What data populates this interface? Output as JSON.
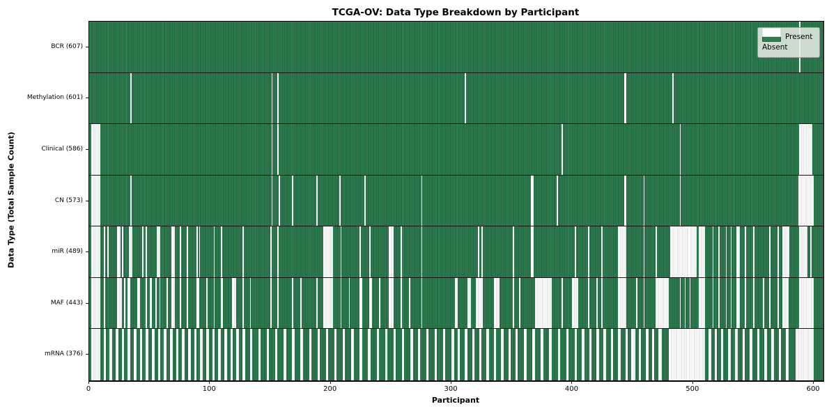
{
  "title": "TCGA-OV: Data Type Breakdown by Participant",
  "xlabel": "Participant",
  "ylabel": "Data Type (Total Sample Count)",
  "legend": {
    "present_label": "Present",
    "absent_label": "Absent"
  },
  "colors": {
    "present": "#2e7d50",
    "present_edge": "#1f5a39",
    "absent": "#ffffff",
    "absent_edge": "#d4d4d4",
    "legend_bg": "#e9ede6"
  },
  "chart_data": {
    "type": "heatmap",
    "title": "TCGA-OV: Data Type Breakdown by Participant",
    "xlabel": "Participant",
    "ylabel": "Data Type (Total Sample Count)",
    "legend_entries": [
      "Present",
      "Absent"
    ],
    "legend_position": "upper right",
    "n_participants": 608,
    "xlim": [
      0,
      608
    ],
    "x_ticks": [
      0,
      100,
      200,
      300,
      400,
      500,
      600
    ],
    "rows": [
      {
        "name": "BCR",
        "label": "BCR (607)",
        "present_count": 607,
        "absent_ranges": [
          [
            588,
            589
          ]
        ]
      },
      {
        "name": "Methylation",
        "label": "Methylation (601)",
        "present_count": 601,
        "absent_ranges": [
          [
            34,
            35
          ],
          [
            151,
            152
          ],
          [
            156,
            157
          ],
          [
            311,
            312
          ],
          [
            443,
            445
          ],
          [
            483,
            484
          ]
        ]
      },
      {
        "name": "Clinical",
        "label": "Clinical (586)",
        "present_count": 586,
        "absent_ranges": [
          [
            2,
            9
          ],
          [
            151,
            152
          ],
          [
            156,
            157
          ],
          [
            391,
            392
          ],
          [
            489,
            490
          ],
          [
            588,
            599
          ]
        ]
      },
      {
        "name": "CN",
        "label": "CN (573)",
        "present_count": 573,
        "absent_ranges": [
          [
            2,
            9
          ],
          [
            34,
            35
          ],
          [
            151,
            152
          ],
          [
            157,
            158
          ],
          [
            168,
            169
          ],
          [
            188,
            189
          ],
          [
            207,
            208
          ],
          [
            228,
            229
          ],
          [
            275,
            276
          ],
          [
            366,
            368
          ],
          [
            387,
            388
          ],
          [
            443,
            445
          ],
          [
            459,
            460
          ],
          [
            489,
            490
          ],
          [
            587,
            600
          ]
        ]
      },
      {
        "name": "miR",
        "label": "miR (489)",
        "present_count": 489,
        "absent_ranges": [
          [
            2,
            9
          ],
          [
            12,
            13
          ],
          [
            15,
            16
          ],
          [
            23,
            26
          ],
          [
            27,
            28
          ],
          [
            33,
            36
          ],
          [
            44,
            45
          ],
          [
            47,
            48
          ],
          [
            56,
            59
          ],
          [
            68,
            71
          ],
          [
            75,
            76
          ],
          [
            81,
            82
          ],
          [
            89,
            90
          ],
          [
            91,
            92
          ],
          [
            103,
            104
          ],
          [
            109,
            110
          ],
          [
            127,
            128
          ],
          [
            150,
            151
          ],
          [
            156,
            157
          ],
          [
            194,
            202
          ],
          [
            208,
            209
          ],
          [
            224,
            225
          ],
          [
            232,
            233
          ],
          [
            248,
            252
          ],
          [
            258,
            259
          ],
          [
            275,
            276
          ],
          [
            322,
            323
          ],
          [
            325,
            326
          ],
          [
            351,
            352
          ],
          [
            366,
            368
          ],
          [
            402,
            403
          ],
          [
            413,
            414
          ],
          [
            424,
            425
          ],
          [
            438,
            445
          ],
          [
            459,
            460
          ],
          [
            469,
            470
          ],
          [
            481,
            503
          ],
          [
            505,
            510
          ],
          [
            516,
            517
          ],
          [
            521,
            522
          ],
          [
            527,
            528
          ],
          [
            531,
            532
          ],
          [
            536,
            539
          ],
          [
            543,
            544
          ],
          [
            550,
            551
          ],
          [
            563,
            564
          ],
          [
            570,
            571
          ],
          [
            574,
            580
          ],
          [
            588,
            595
          ],
          [
            597,
            598
          ]
        ]
      },
      {
        "name": "MAF",
        "label": "MAF (443)",
        "present_count": 443,
        "absent_ranges": [
          [
            2,
            9
          ],
          [
            12,
            13
          ],
          [
            23,
            27
          ],
          [
            29,
            30
          ],
          [
            32,
            34
          ],
          [
            40,
            42
          ],
          [
            47,
            48
          ],
          [
            50,
            52
          ],
          [
            55,
            56
          ],
          [
            58,
            59
          ],
          [
            64,
            65
          ],
          [
            68,
            71
          ],
          [
            75,
            76
          ],
          [
            81,
            82
          ],
          [
            89,
            91
          ],
          [
            97,
            98
          ],
          [
            103,
            104
          ],
          [
            109,
            111
          ],
          [
            118,
            122
          ],
          [
            127,
            128
          ],
          [
            133,
            134
          ],
          [
            150,
            151
          ],
          [
            156,
            157
          ],
          [
            168,
            169
          ],
          [
            175,
            176
          ],
          [
            188,
            189
          ],
          [
            194,
            202
          ],
          [
            208,
            209
          ],
          [
            215,
            216
          ],
          [
            224,
            226
          ],
          [
            232,
            234
          ],
          [
            240,
            241
          ],
          [
            248,
            252
          ],
          [
            258,
            259
          ],
          [
            265,
            266
          ],
          [
            275,
            276
          ],
          [
            303,
            305
          ],
          [
            313,
            316
          ],
          [
            320,
            326
          ],
          [
            335,
            340
          ],
          [
            351,
            352
          ],
          [
            356,
            357
          ],
          [
            369,
            383
          ],
          [
            391,
            392
          ],
          [
            400,
            405
          ],
          [
            413,
            414
          ],
          [
            420,
            421
          ],
          [
            424,
            425
          ],
          [
            438,
            445
          ],
          [
            453,
            454
          ],
          [
            459,
            460
          ],
          [
            469,
            480
          ],
          [
            489,
            490
          ],
          [
            493,
            494
          ],
          [
            497,
            498
          ],
          [
            505,
            510
          ],
          [
            516,
            517
          ],
          [
            521,
            522
          ],
          [
            527,
            528
          ],
          [
            531,
            532
          ],
          [
            536,
            539
          ],
          [
            543,
            544
          ],
          [
            550,
            551
          ],
          [
            558,
            559
          ],
          [
            563,
            564
          ],
          [
            570,
            571
          ],
          [
            574,
            579
          ],
          [
            588,
            600
          ]
        ]
      },
      {
        "name": "mRNA",
        "label": "mRNA (376)",
        "present_count": 376,
        "absent_ranges": [
          [
            2,
            9
          ],
          [
            12,
            14
          ],
          [
            17,
            19
          ],
          [
            22,
            24
          ],
          [
            27,
            29
          ],
          [
            32,
            34
          ],
          [
            37,
            39
          ],
          [
            42,
            44
          ],
          [
            47,
            49
          ],
          [
            52,
            54
          ],
          [
            57,
            59
          ],
          [
            62,
            64
          ],
          [
            67,
            69
          ],
          [
            72,
            74
          ],
          [
            77,
            79
          ],
          [
            82,
            84
          ],
          [
            87,
            89
          ],
          [
            92,
            94
          ],
          [
            97,
            99
          ],
          [
            102,
            104
          ],
          [
            107,
            109
          ],
          [
            112,
            114
          ],
          [
            117,
            119
          ],
          [
            122,
            124
          ],
          [
            127,
            129
          ],
          [
            133,
            135
          ],
          [
            140,
            142
          ],
          [
            147,
            149
          ],
          [
            154,
            156
          ],
          [
            161,
            163
          ],
          [
            168,
            170
          ],
          [
            175,
            177
          ],
          [
            182,
            184
          ],
          [
            189,
            191
          ],
          [
            196,
            198
          ],
          [
            203,
            205
          ],
          [
            210,
            212
          ],
          [
            217,
            219
          ],
          [
            224,
            226
          ],
          [
            231,
            233
          ],
          [
            238,
            240
          ],
          [
            245,
            247
          ],
          [
            252,
            254
          ],
          [
            259,
            261
          ],
          [
            266,
            268
          ],
          [
            272,
            274
          ],
          [
            279,
            281
          ],
          [
            286,
            288
          ],
          [
            293,
            295
          ],
          [
            300,
            302
          ],
          [
            305,
            307
          ],
          [
            311,
            313
          ],
          [
            317,
            319
          ],
          [
            323,
            325
          ],
          [
            329,
            331
          ],
          [
            335,
            337
          ],
          [
            341,
            343
          ],
          [
            347,
            349
          ],
          [
            353,
            355
          ],
          [
            360,
            362
          ],
          [
            367,
            369
          ],
          [
            374,
            376
          ],
          [
            381,
            383
          ],
          [
            388,
            390
          ],
          [
            395,
            397
          ],
          [
            402,
            404
          ],
          [
            408,
            410
          ],
          [
            414,
            416
          ],
          [
            420,
            422
          ],
          [
            426,
            428
          ],
          [
            432,
            434
          ],
          [
            438,
            440
          ],
          [
            444,
            446
          ],
          [
            449,
            452
          ],
          [
            455,
            457
          ],
          [
            461,
            463
          ],
          [
            466,
            468
          ],
          [
            471,
            474
          ],
          [
            480,
            510
          ],
          [
            513,
            515
          ],
          [
            518,
            520
          ],
          [
            523,
            525
          ],
          [
            529,
            531
          ],
          [
            535,
            537
          ],
          [
            541,
            543
          ],
          [
            547,
            549
          ],
          [
            553,
            555
          ],
          [
            559,
            561
          ],
          [
            565,
            567
          ],
          [
            571,
            573
          ],
          [
            577,
            579
          ],
          [
            585,
            600
          ]
        ]
      }
    ]
  }
}
